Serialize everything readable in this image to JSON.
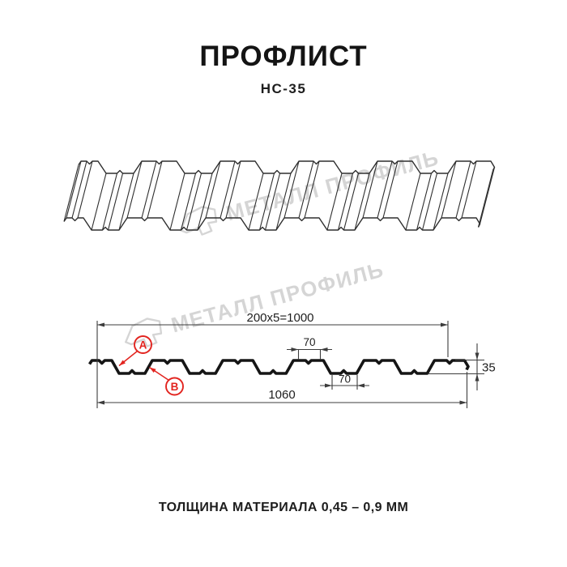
{
  "header": {
    "title": "ПРОФЛИСТ",
    "subtitle": "НС-35"
  },
  "watermark": {
    "text": "МЕТАЛЛ ПРОФИЛЬ"
  },
  "section": {
    "dims": {
      "working_width": "200x5=1000",
      "rib_top": "70",
      "rib_bottom": "70",
      "height": "35",
      "full_width": "1060"
    },
    "labels": {
      "a": "A",
      "b": "B"
    }
  },
  "footer": {
    "text": "ТОЛЩИНА МАТЕРИАЛА 0,45 – 0,9 ММ"
  },
  "colors": {
    "profile": "#151515",
    "wire": "#2e2e2e",
    "dimline": "#3c3c3c",
    "accent_red": "#e2241f",
    "watermark_gray": "#d5d5d5"
  }
}
